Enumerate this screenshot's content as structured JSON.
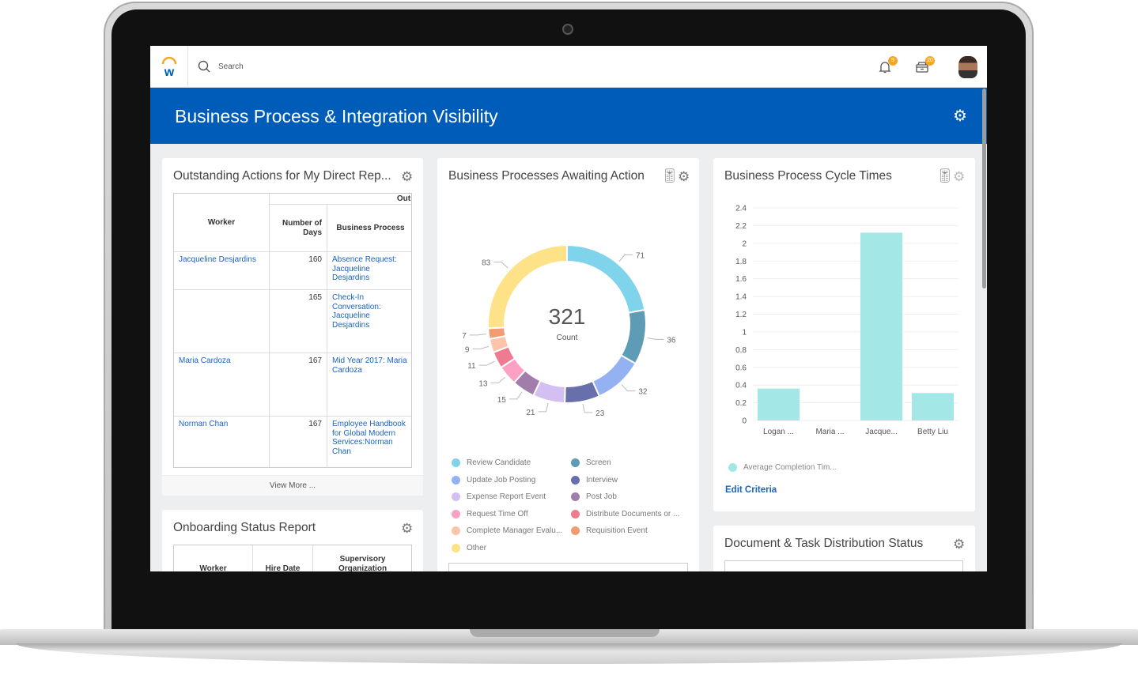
{
  "nav": {
    "search_placeholder": "Search",
    "notifications_count": "9",
    "inbox_count": "20"
  },
  "header": {
    "title": "Business Process & Integration Visibility"
  },
  "outstanding": {
    "title": "Outstanding Actions for My Direct Rep...",
    "group_header": "Outst",
    "columns": [
      "Worker",
      "Number of Days",
      "Business Process"
    ],
    "rows": [
      {
        "worker": "Jacqueline Desjardins",
        "days": "160",
        "process": "Absence Request: Jacqueline Desjardins"
      },
      {
        "worker": "",
        "days": "165",
        "process": "Check-In Conversation: Jacqueline Desjardins"
      },
      {
        "worker": "Maria Cardoza",
        "days": "167",
        "process": "Mid Year 2017: Maria Cardoza"
      },
      {
        "worker": "Norman Chan",
        "days": "167",
        "process": "Employee Handbook for Global Modern Services:Norman Chan"
      }
    ],
    "view_more": "View More ..."
  },
  "onboarding": {
    "title": "Onboarding Status Report",
    "columns": [
      "Worker",
      "Hire Date",
      "Supervisory Organization"
    ]
  },
  "awaiting": {
    "title": "Business Processes Awaiting Action",
    "total": "321",
    "total_label": "Count"
  },
  "cycle": {
    "title": "Business Process Cycle Times",
    "legend": "Average Completion Tim...",
    "edit_criteria": "Edit Criteria"
  },
  "docdist": {
    "title": "Document & Task Distribution Status"
  },
  "chart_data": [
    {
      "type": "pie",
      "title": "Business Processes Awaiting Action",
      "center_value": 321,
      "center_label": "Count",
      "legend_placement": "bottom",
      "slices": [
        {
          "name": "Review Candidate",
          "value": 71,
          "color": "#7fd4ec"
        },
        {
          "name": "Screen",
          "value": 36,
          "color": "#5e9bb5"
        },
        {
          "name": "Update Job Posting",
          "value": 32,
          "color": "#94b2f2"
        },
        {
          "name": "Interview",
          "value": 23,
          "color": "#6870ab"
        },
        {
          "name": "Expense Report Event",
          "value": 21,
          "color": "#d3bff2"
        },
        {
          "name": "Post Job",
          "value": 15,
          "color": "#a07dab"
        },
        {
          "name": "Request Time Off",
          "value": 13,
          "color": "#fca0c4"
        },
        {
          "name": "Distribute Documents or ...",
          "value": 11,
          "color": "#ef7b91"
        },
        {
          "name": "Complete Manager Evalu...",
          "value": 9,
          "color": "#fcc4ab"
        },
        {
          "name": "Requisition Event",
          "value": 7,
          "color": "#f29c74"
        },
        {
          "name": "Other",
          "value": 83,
          "color": "#fde287"
        }
      ]
    },
    {
      "type": "bar",
      "title": "Business Process Cycle Times",
      "categories": [
        "Logan ...",
        "Maria ...",
        "Jacque...",
        "Betty Liu"
      ],
      "series": [
        {
          "name": "Average Completion Tim...",
          "values": [
            0.36,
            0,
            2.12,
            0.31
          ],
          "color": "#a3e8e6"
        }
      ],
      "ylim": [
        0,
        2.4
      ],
      "yticks": [
        "0",
        "0.2",
        "0.4",
        "0.6",
        "0.8",
        "1",
        "1.2",
        "1.4",
        "1.6",
        "1.8",
        "2",
        "2.2",
        "2.4"
      ],
      "grid": true,
      "legend_placement": "bottom-left"
    }
  ]
}
